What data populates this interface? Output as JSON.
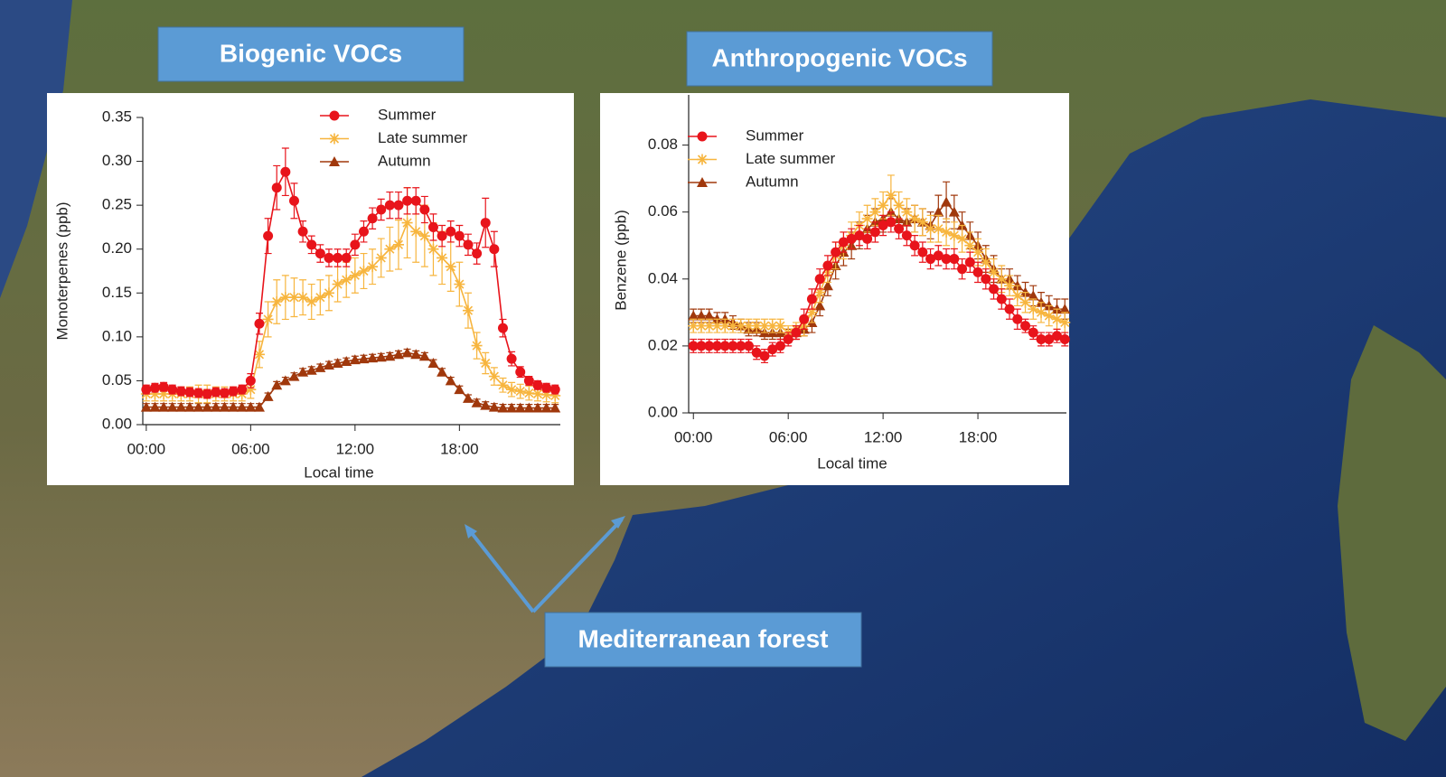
{
  "chart_data": [
    {
      "type": "line",
      "title": "Biogenic VOCs",
      "x_label": "Local time",
      "y_label": "Monoterpenes (ppb)",
      "x": [
        0,
        0.5,
        1,
        1.5,
        2,
        2.5,
        3,
        3.5,
        4,
        4.5,
        5,
        5.5,
        6,
        6.5,
        7,
        7.5,
        8,
        8.5,
        9,
        9.5,
        10,
        10.5,
        11,
        11.5,
        12,
        12.5,
        13,
        13.5,
        14,
        14.5,
        15,
        15.5,
        16,
        16.5,
        17,
        17.5,
        18,
        18.5,
        19,
        19.5,
        20,
        20.5,
        21,
        21.5,
        22,
        22.5,
        23,
        23.5
      ],
      "xlim": [
        -0.2,
        23.8
      ],
      "xticks": [
        {
          "value": 0,
          "label": "00:00"
        },
        {
          "value": 6,
          "label": "06:00"
        },
        {
          "value": 12,
          "label": "12:00"
        },
        {
          "value": 18,
          "label": "18:00"
        }
      ],
      "ylim": [
        0,
        0.35
      ],
      "yticks": [
        {
          "value": 0,
          "label": "0.00"
        },
        0.05,
        {
          "value": 0.1,
          "label": "0.10"
        },
        0.15,
        {
          "value": 0.2,
          "label": "0.20"
        },
        0.25,
        {
          "value": 0.3,
          "label": "0.30"
        },
        0.35
      ],
      "series": [
        {
          "name": "Summer",
          "color": "#e8141b",
          "marker": "circle",
          "values": [
            0.04,
            0.042,
            0.043,
            0.04,
            0.038,
            0.037,
            0.036,
            0.035,
            0.037,
            0.036,
            0.038,
            0.04,
            0.05,
            0.115,
            0.215,
            0.27,
            0.288,
            0.255,
            0.22,
            0.205,
            0.195,
            0.19,
            0.19,
            0.19,
            0.205,
            0.22,
            0.235,
            0.245,
            0.25,
            0.25,
            0.255,
            0.255,
            0.245,
            0.225,
            0.215,
            0.22,
            0.215,
            0.205,
            0.195,
            0.23,
            0.2,
            0.11,
            0.075,
            0.06,
            0.05,
            0.045,
            0.042,
            0.04
          ],
          "errors": [
            0.005,
            0.005,
            0.005,
            0.005,
            0.005,
            0.005,
            0.005,
            0.005,
            0.005,
            0.005,
            0.005,
            0.005,
            0.008,
            0.012,
            0.02,
            0.025,
            0.027,
            0.02,
            0.012,
            0.01,
            0.01,
            0.01,
            0.01,
            0.01,
            0.012,
            0.012,
            0.012,
            0.012,
            0.015,
            0.015,
            0.015,
            0.015,
            0.015,
            0.015,
            0.012,
            0.012,
            0.012,
            0.012,
            0.012,
            0.028,
            0.02,
            0.01,
            0.008,
            0.006,
            0.005,
            0.005,
            0.005,
            0.005
          ]
        },
        {
          "name": "Late summer",
          "color": "#f7b53e",
          "marker": "star",
          "values": [
            0.035,
            0.035,
            0.035,
            0.035,
            0.035,
            0.035,
            0.035,
            0.035,
            0.035,
            0.035,
            0.035,
            0.035,
            0.04,
            0.08,
            0.12,
            0.14,
            0.145,
            0.145,
            0.145,
            0.14,
            0.145,
            0.15,
            0.16,
            0.165,
            0.17,
            0.175,
            0.18,
            0.19,
            0.2,
            0.205,
            0.23,
            0.22,
            0.215,
            0.2,
            0.19,
            0.18,
            0.16,
            0.13,
            0.09,
            0.07,
            0.055,
            0.045,
            0.04,
            0.038,
            0.036,
            0.035,
            0.034,
            0.033
          ],
          "errors": [
            0.008,
            0.008,
            0.008,
            0.008,
            0.008,
            0.008,
            0.01,
            0.01,
            0.008,
            0.008,
            0.008,
            0.008,
            0.01,
            0.015,
            0.02,
            0.025,
            0.025,
            0.022,
            0.02,
            0.02,
            0.02,
            0.02,
            0.02,
            0.02,
            0.02,
            0.02,
            0.02,
            0.022,
            0.025,
            0.028,
            0.04,
            0.035,
            0.035,
            0.03,
            0.03,
            0.028,
            0.025,
            0.02,
            0.015,
            0.012,
            0.01,
            0.008,
            0.008,
            0.008,
            0.008,
            0.008,
            0.008,
            0.008
          ]
        },
        {
          "name": "Autumn",
          "color": "#a0380c",
          "marker": "triangle",
          "values": [
            0.02,
            0.02,
            0.02,
            0.02,
            0.02,
            0.02,
            0.02,
            0.02,
            0.02,
            0.02,
            0.02,
            0.02,
            0.02,
            0.02,
            0.032,
            0.045,
            0.05,
            0.055,
            0.06,
            0.062,
            0.065,
            0.068,
            0.07,
            0.072,
            0.074,
            0.075,
            0.076,
            0.077,
            0.078,
            0.08,
            0.082,
            0.08,
            0.078,
            0.07,
            0.06,
            0.05,
            0.04,
            0.03,
            0.025,
            0.022,
            0.02,
            0.019,
            0.019,
            0.019,
            0.019,
            0.019,
            0.019,
            0.019
          ],
          "errors": [
            0.004,
            0.004,
            0.004,
            0.004,
            0.004,
            0.004,
            0.004,
            0.004,
            0.004,
            0.004,
            0.004,
            0.004,
            0.004,
            0.004,
            0.004,
            0.004,
            0.004,
            0.004,
            0.004,
            0.004,
            0.004,
            0.004,
            0.004,
            0.004,
            0.004,
            0.004,
            0.004,
            0.004,
            0.004,
            0.004,
            0.004,
            0.004,
            0.004,
            0.004,
            0.004,
            0.004,
            0.004,
            0.004,
            0.004,
            0.004,
            0.004,
            0.004,
            0.004,
            0.004,
            0.004,
            0.004,
            0.004,
            0.004
          ]
        }
      ]
    },
    {
      "type": "line",
      "title": "Anthropogenic VOCs",
      "x_label": "Local time",
      "y_label": "Benzene (ppb)",
      "x": [
        0,
        0.5,
        1,
        1.5,
        2,
        2.5,
        3,
        3.5,
        4,
        4.5,
        5,
        5.5,
        6,
        6.5,
        7,
        7.5,
        8,
        8.5,
        9,
        9.5,
        10,
        10.5,
        11,
        11.5,
        12,
        12.5,
        13,
        13.5,
        14,
        14.5,
        15,
        15.5,
        16,
        16.5,
        17,
        17.5,
        18,
        18.5,
        19,
        19.5,
        20,
        20.5,
        21,
        21.5,
        22,
        22.5,
        23,
        23.5
      ],
      "xlim": [
        -0.3,
        23.6
      ],
      "xticks": [
        {
          "value": 0,
          "label": "00:00"
        },
        {
          "value": 6,
          "label": "06:00"
        },
        {
          "value": 12,
          "label": "12:00"
        },
        {
          "value": 18,
          "label": "18:00"
        }
      ],
      "ylim": [
        0,
        0.095
      ],
      "yticks": [
        {
          "value": 0,
          "label": "0.00"
        },
        0.02,
        0.04,
        0.06,
        0.08
      ],
      "series": [
        {
          "name": "Summer",
          "color": "#e8141b",
          "marker": "circle",
          "values": [
            0.02,
            0.02,
            0.02,
            0.02,
            0.02,
            0.02,
            0.02,
            0.02,
            0.018,
            0.017,
            0.019,
            0.02,
            0.022,
            0.024,
            0.028,
            0.034,
            0.04,
            0.044,
            0.048,
            0.051,
            0.052,
            0.053,
            0.052,
            0.054,
            0.056,
            0.057,
            0.055,
            0.053,
            0.05,
            0.048,
            0.046,
            0.047,
            0.046,
            0.046,
            0.043,
            0.045,
            0.042,
            0.04,
            0.037,
            0.034,
            0.031,
            0.028,
            0.026,
            0.024,
            0.022,
            0.022,
            0.023,
            0.022
          ],
          "errors": [
            0.002,
            0.002,
            0.002,
            0.002,
            0.002,
            0.002,
            0.002,
            0.002,
            0.002,
            0.002,
            0.002,
            0.002,
            0.002,
            0.002,
            0.003,
            0.003,
            0.003,
            0.003,
            0.003,
            0.003,
            0.003,
            0.003,
            0.003,
            0.003,
            0.003,
            0.003,
            0.003,
            0.003,
            0.003,
            0.003,
            0.003,
            0.003,
            0.003,
            0.003,
            0.003,
            0.003,
            0.003,
            0.003,
            0.003,
            0.003,
            0.003,
            0.003,
            0.002,
            0.002,
            0.002,
            0.002,
            0.002,
            0.002
          ]
        },
        {
          "name": "Late summer",
          "color": "#f7b53e",
          "marker": "star",
          "values": [
            0.026,
            0.026,
            0.026,
            0.026,
            0.026,
            0.026,
            0.026,
            0.026,
            0.026,
            0.026,
            0.026,
            0.026,
            0.024,
            0.025,
            0.026,
            0.03,
            0.036,
            0.042,
            0.047,
            0.05,
            0.053,
            0.056,
            0.058,
            0.06,
            0.062,
            0.065,
            0.062,
            0.06,
            0.058,
            0.057,
            0.055,
            0.055,
            0.054,
            0.053,
            0.052,
            0.05,
            0.048,
            0.045,
            0.042,
            0.04,
            0.038,
            0.035,
            0.033,
            0.031,
            0.03,
            0.029,
            0.028,
            0.027
          ],
          "errors": [
            0.002,
            0.002,
            0.002,
            0.002,
            0.002,
            0.002,
            0.002,
            0.002,
            0.002,
            0.002,
            0.002,
            0.002,
            0.002,
            0.002,
            0.003,
            0.003,
            0.003,
            0.003,
            0.004,
            0.004,
            0.004,
            0.004,
            0.004,
            0.004,
            0.004,
            0.006,
            0.004,
            0.004,
            0.004,
            0.004,
            0.004,
            0.004,
            0.004,
            0.004,
            0.004,
            0.004,
            0.004,
            0.004,
            0.004,
            0.004,
            0.003,
            0.003,
            0.003,
            0.003,
            0.003,
            0.003,
            0.003,
            0.003
          ]
        },
        {
          "name": "Autumn",
          "color": "#a0380c",
          "marker": "triangle",
          "values": [
            0.029,
            0.029,
            0.029,
            0.028,
            0.028,
            0.027,
            0.026,
            0.025,
            0.025,
            0.024,
            0.024,
            0.024,
            0.023,
            0.024,
            0.025,
            0.027,
            0.032,
            0.038,
            0.044,
            0.048,
            0.05,
            0.053,
            0.055,
            0.057,
            0.058,
            0.06,
            0.058,
            0.057,
            0.058,
            0.057,
            0.056,
            0.06,
            0.063,
            0.06,
            0.056,
            0.053,
            0.05,
            0.046,
            0.043,
            0.04,
            0.04,
            0.038,
            0.036,
            0.035,
            0.033,
            0.032,
            0.031,
            0.031
          ],
          "errors": [
            0.002,
            0.002,
            0.002,
            0.002,
            0.002,
            0.002,
            0.002,
            0.002,
            0.002,
            0.002,
            0.002,
            0.002,
            0.002,
            0.002,
            0.002,
            0.003,
            0.003,
            0.003,
            0.004,
            0.004,
            0.004,
            0.004,
            0.004,
            0.004,
            0.004,
            0.004,
            0.004,
            0.004,
            0.004,
            0.004,
            0.004,
            0.005,
            0.006,
            0.005,
            0.004,
            0.004,
            0.004,
            0.004,
            0.004,
            0.003,
            0.003,
            0.003,
            0.003,
            0.003,
            0.003,
            0.003,
            0.003,
            0.003
          ]
        }
      ]
    }
  ],
  "annotation": "Mediterranean forest"
}
